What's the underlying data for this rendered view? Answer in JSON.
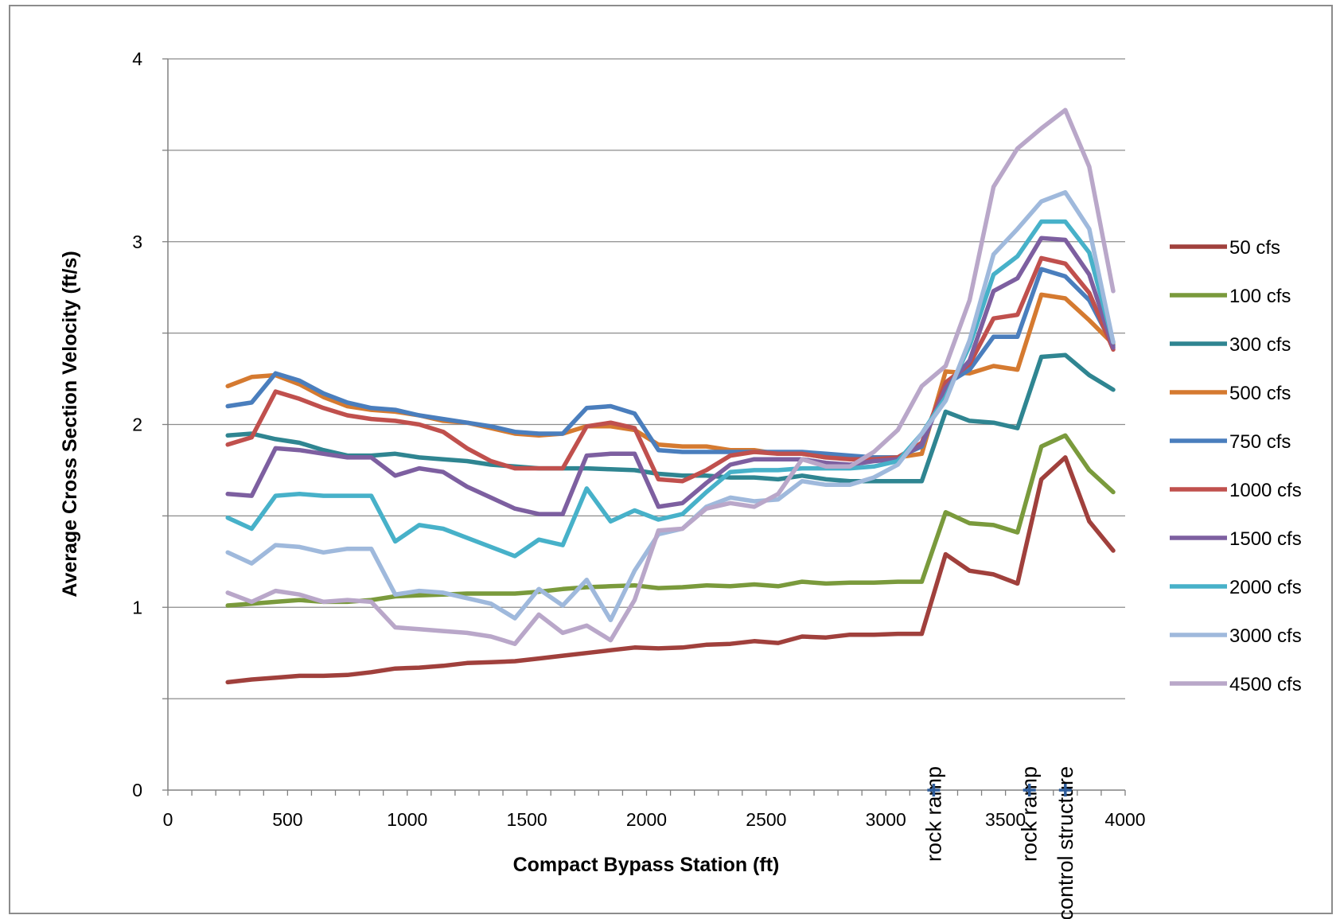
{
  "chart_data": {
    "type": "line",
    "title": "",
    "xlabel": "Compact Bypass Station (ft)",
    "ylabel": "Average Cross Section Velocity (ft/s)",
    "xlim": [
      0,
      4000
    ],
    "ylim": [
      0,
      4
    ],
    "xticks": [
      0,
      500,
      1000,
      1500,
      2000,
      2500,
      3000,
      3500,
      4000
    ],
    "yticks": [
      0,
      1,
      2,
      3,
      4
    ],
    "x_minor_step": 100,
    "y_grid_step": 0.5,
    "grid": true,
    "legend_position": "right",
    "x": [
      250,
      350,
      450,
      550,
      650,
      750,
      850,
      950,
      1050,
      1150,
      1250,
      1350,
      1450,
      1550,
      1650,
      1750,
      1850,
      1950,
      2050,
      2150,
      2250,
      2350,
      2450,
      2550,
      2650,
      2750,
      2850,
      2950,
      3050,
      3150,
      3250,
      3350,
      3450,
      3550,
      3650,
      3750,
      3850,
      3950
    ],
    "series": [
      {
        "name": "50 cfs",
        "color": "#a0403c",
        "values": [
          0.59,
          0.605,
          0.615,
          0.625,
          0.625,
          0.63,
          0.645,
          0.665,
          0.67,
          0.68,
          0.695,
          0.7,
          0.705,
          0.72,
          0.735,
          0.75,
          0.765,
          0.78,
          0.775,
          0.78,
          0.795,
          0.8,
          0.815,
          0.805,
          0.84,
          0.835,
          0.85,
          0.85,
          0.855,
          0.855,
          1.29,
          1.2,
          1.18,
          1.13,
          1.7,
          1.82,
          1.47,
          1.31
        ]
      },
      {
        "name": "100 cfs",
        "color": "#7a9a3c",
        "values": [
          1.01,
          1.02,
          1.03,
          1.04,
          1.03,
          1.03,
          1.04,
          1.06,
          1.065,
          1.07,
          1.075,
          1.075,
          1.075,
          1.085,
          1.1,
          1.11,
          1.115,
          1.12,
          1.105,
          1.11,
          1.12,
          1.115,
          1.125,
          1.115,
          1.14,
          1.13,
          1.135,
          1.135,
          1.14,
          1.14,
          1.52,
          1.46,
          1.45,
          1.41,
          1.88,
          1.94,
          1.75,
          1.63
        ]
      },
      {
        "name": "300 cfs",
        "color": "#2f8591",
        "values": [
          1.94,
          1.95,
          1.92,
          1.9,
          1.86,
          1.83,
          1.83,
          1.84,
          1.82,
          1.81,
          1.8,
          1.78,
          1.77,
          1.76,
          1.76,
          1.76,
          1.755,
          1.75,
          1.73,
          1.72,
          1.72,
          1.71,
          1.71,
          1.7,
          1.72,
          1.7,
          1.69,
          1.69,
          1.69,
          1.69,
          2.07,
          2.02,
          2.01,
          1.98,
          2.37,
          2.38,
          2.27,
          2.19
        ]
      },
      {
        "name": "500 cfs",
        "color": "#d57a30",
        "values": [
          2.21,
          2.26,
          2.27,
          2.22,
          2.15,
          2.1,
          2.08,
          2.07,
          2.05,
          2.02,
          2.01,
          1.98,
          1.95,
          1.94,
          1.95,
          1.99,
          1.99,
          1.97,
          1.89,
          1.88,
          1.88,
          1.86,
          1.86,
          1.84,
          1.84,
          1.82,
          1.82,
          1.82,
          1.82,
          1.84,
          2.29,
          2.28,
          2.32,
          2.3,
          2.71,
          2.69,
          2.57,
          2.44
        ]
      },
      {
        "name": "750 cfs",
        "color": "#4a7ebd",
        "values": [
          2.1,
          2.12,
          2.28,
          2.24,
          2.17,
          2.12,
          2.09,
          2.08,
          2.05,
          2.03,
          2.01,
          1.99,
          1.96,
          1.95,
          1.95,
          2.09,
          2.1,
          2.06,
          1.86,
          1.85,
          1.85,
          1.85,
          1.85,
          1.85,
          1.85,
          1.84,
          1.83,
          1.82,
          1.82,
          1.88,
          2.22,
          2.3,
          2.48,
          2.48,
          2.85,
          2.81,
          2.68,
          2.43
        ]
      },
      {
        "name": "1000 cfs",
        "color": "#c0504d",
        "values": [
          1.89,
          1.93,
          2.18,
          2.14,
          2.09,
          2.05,
          2.03,
          2.02,
          2.0,
          1.96,
          1.87,
          1.8,
          1.76,
          1.76,
          1.76,
          1.99,
          2.01,
          1.98,
          1.7,
          1.69,
          1.75,
          1.83,
          1.85,
          1.84,
          1.84,
          1.82,
          1.81,
          1.81,
          1.82,
          1.9,
          2.23,
          2.33,
          2.58,
          2.6,
          2.91,
          2.88,
          2.72,
          2.41
        ]
      },
      {
        "name": "1500 cfs",
        "color": "#7d5fa0",
        "values": [
          1.62,
          1.61,
          1.87,
          1.86,
          1.84,
          1.82,
          1.82,
          1.72,
          1.76,
          1.74,
          1.66,
          1.6,
          1.54,
          1.51,
          1.51,
          1.83,
          1.84,
          1.84,
          1.55,
          1.57,
          1.68,
          1.78,
          1.81,
          1.81,
          1.81,
          1.79,
          1.78,
          1.8,
          1.81,
          1.89,
          2.2,
          2.35,
          2.73,
          2.8,
          3.02,
          3.01,
          2.82,
          2.42
        ]
      },
      {
        "name": "2000 cfs",
        "color": "#47b1c9",
        "values": [
          1.49,
          1.43,
          1.61,
          1.62,
          1.61,
          1.61,
          1.61,
          1.36,
          1.45,
          1.43,
          1.38,
          1.33,
          1.28,
          1.37,
          1.34,
          1.65,
          1.47,
          1.53,
          1.48,
          1.51,
          1.63,
          1.74,
          1.75,
          1.75,
          1.76,
          1.76,
          1.76,
          1.77,
          1.8,
          1.95,
          2.15,
          2.43,
          2.82,
          2.92,
          3.11,
          3.11,
          2.94,
          2.45
        ]
      },
      {
        "name": "3000 cfs",
        "color": "#9fb9dc",
        "values": [
          1.3,
          1.24,
          1.34,
          1.33,
          1.3,
          1.32,
          1.32,
          1.07,
          1.09,
          1.08,
          1.05,
          1.02,
          0.94,
          1.1,
          1.01,
          1.15,
          0.93,
          1.2,
          1.4,
          1.43,
          1.55,
          1.6,
          1.58,
          1.59,
          1.69,
          1.67,
          1.67,
          1.71,
          1.78,
          1.95,
          2.13,
          2.46,
          2.93,
          3.07,
          3.22,
          3.27,
          3.07,
          2.45
        ]
      },
      {
        "name": "4500 cfs",
        "color": "#b9a7c9",
        "values": [
          1.08,
          1.03,
          1.09,
          1.07,
          1.03,
          1.04,
          1.03,
          0.89,
          0.88,
          0.87,
          0.86,
          0.84,
          0.8,
          0.96,
          0.86,
          0.9,
          0.82,
          1.04,
          1.42,
          1.43,
          1.54,
          1.57,
          1.55,
          1.62,
          1.81,
          1.77,
          1.77,
          1.85,
          1.97,
          2.21,
          2.32,
          2.68,
          3.3,
          3.51,
          3.62,
          3.72,
          3.41,
          2.73
        ]
      }
    ],
    "annotations": [
      {
        "label": "rock ramp",
        "x": 3200
      },
      {
        "label": "rock ramp",
        "x": 3600
      },
      {
        "label": "control structure",
        "x": 3750
      }
    ],
    "marker_color": "#2e5c9a"
  }
}
